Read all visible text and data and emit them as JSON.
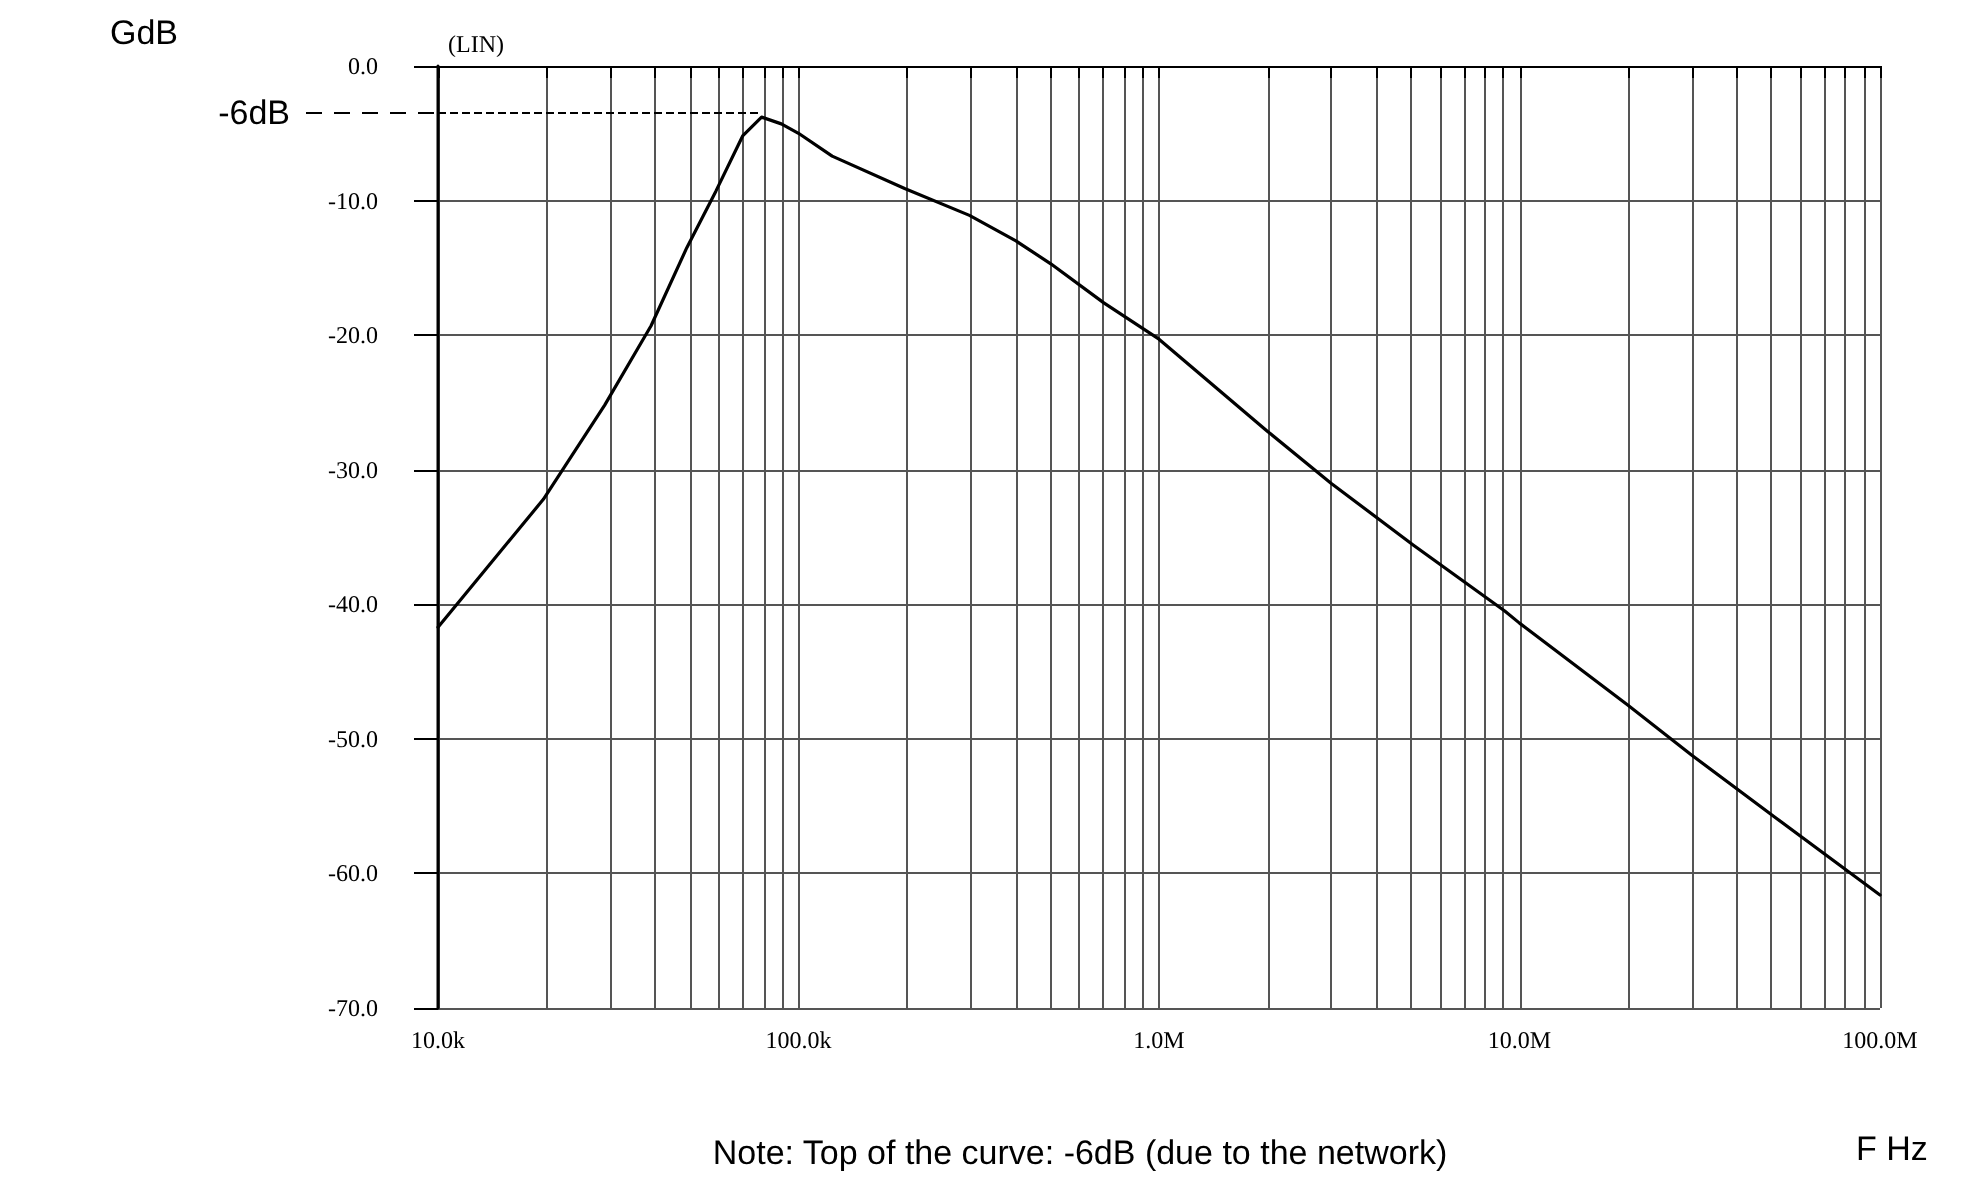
{
  "chart_data": {
    "type": "line",
    "xlabel": "F Hz",
    "ylabel": "GdB",
    "annotations": [
      "(LIN)",
      "Note: Top of the curve: -6dB (due to the network)"
    ],
    "x": [
      10000,
      19600,
      29000,
      39000,
      49000,
      59000,
      70000,
      79000,
      89600,
      100000,
      124000,
      197000,
      298000,
      401000,
      501000,
      703000,
      1000000,
      1990000,
      3000000,
      5070000,
      9100000,
      10000000,
      20000000,
      30000000,
      51000000,
      100000000
    ],
    "series": [
      {
        "color": "#000000",
        "values": [
          -41.7,
          -32.2,
          -25.2,
          -19.3,
          -13.5,
          -9.3,
          -5.2,
          -3.8,
          -4.3,
          -5.0,
          -6.7,
          -9.1,
          -11.1,
          -13.0,
          -14.7,
          -17.6,
          -20.3,
          -27.1,
          -31.0,
          -35.6,
          -40.5,
          -41.4,
          -47.5,
          -51.2,
          -55.8,
          -61.6
        ]
      }
    ],
    "log": "x",
    "xlim": [
      10000,
      100000000
    ],
    "ylim": [
      -70,
      0
    ],
    "xticks": [
      {
        "value": 10000,
        "label": "10.0k"
      },
      {
        "value": 20000,
        "label": null
      },
      {
        "value": 30000,
        "label": null
      },
      {
        "value": 40000,
        "label": null
      },
      {
        "value": 50000,
        "label": null
      },
      {
        "value": 60000,
        "label": null
      },
      {
        "value": 70000,
        "label": null
      },
      {
        "value": 80000,
        "label": null
      },
      {
        "value": 90000,
        "label": null
      },
      {
        "value": 100000,
        "label": "100.0k"
      },
      {
        "value": 200000,
        "label": null
      },
      {
        "value": 300000,
        "label": null
      },
      {
        "value": 400000,
        "label": null
      },
      {
        "value": 500000,
        "label": null
      },
      {
        "value": 600000,
        "label": null
      },
      {
        "value": 700000,
        "label": null
      },
      {
        "value": 800000,
        "label": null
      },
      {
        "value": 900000,
        "label": null
      },
      {
        "value": 1000000,
        "label": "1.0M"
      },
      {
        "value": 2000000,
        "label": null
      },
      {
        "value": 3000000,
        "label": null
      },
      {
        "value": 4000000,
        "label": null
      },
      {
        "value": 5000000,
        "label": null
      },
      {
        "value": 6000000,
        "label": null
      },
      {
        "value": 7000000,
        "label": null
      },
      {
        "value": 8000000,
        "label": null
      },
      {
        "value": 9000000,
        "label": null
      },
      {
        "value": 10000000,
        "label": "10.0M"
      },
      {
        "value": 20000000,
        "label": null
      },
      {
        "value": 30000000,
        "label": null
      },
      {
        "value": 40000000,
        "label": null
      },
      {
        "value": 50000000,
        "label": null
      },
      {
        "value": 60000000,
        "label": null
      },
      {
        "value": 70000000,
        "label": null
      },
      {
        "value": 80000000,
        "label": null
      },
      {
        "value": 90000000,
        "label": null
      },
      {
        "value": 100000000,
        "label": "100.0M"
      }
    ],
    "yticks": [
      {
        "value": 0,
        "label": "0.0"
      },
      {
        "value": -10,
        "label": "-10.0"
      },
      {
        "value": -20,
        "label": "-20.0"
      },
      {
        "value": -30,
        "label": "-30.0"
      },
      {
        "value": -40,
        "label": "-40.0"
      },
      {
        "value": -50,
        "label": "-50.0"
      },
      {
        "value": -60,
        "label": "-60.0"
      },
      {
        "value": -70,
        "label": "-70.0"
      }
    ],
    "ref_lines": [
      {
        "axis": "y",
        "value": -3.5,
        "label": "-6dB",
        "line_style": "dashed",
        "color": "#000000"
      }
    ],
    "grid": true,
    "marker": "none",
    "line_style": "solid"
  }
}
